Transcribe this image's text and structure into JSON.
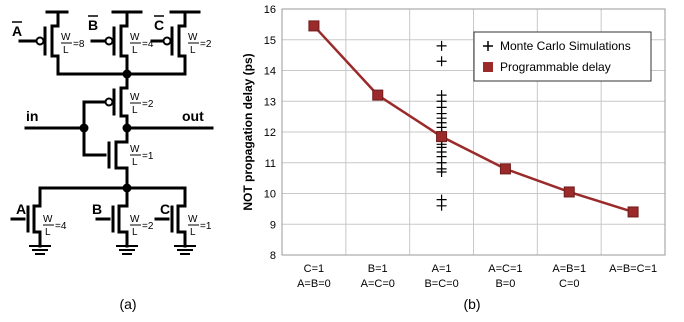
{
  "panel_a": {
    "caption": "(a)",
    "pmos": [
      {
        "label": "A",
        "w": "W",
        "l": "L",
        "ratio": "=8"
      },
      {
        "label": "B",
        "w": "W",
        "l": "L",
        "ratio": "=4"
      },
      {
        "label": "C",
        "w": "W",
        "l": "L",
        "ratio": "=2"
      },
      {
        "label": "",
        "w": "W",
        "l": "L",
        "ratio": "=2"
      }
    ],
    "nmos": [
      {
        "label": "",
        "w": "W",
        "l": "L",
        "ratio": "=1"
      },
      {
        "label": "A",
        "w": "W",
        "l": "L",
        "ratio": "=4"
      },
      {
        "label": "B",
        "w": "W",
        "l": "L",
        "ratio": "=2"
      },
      {
        "label": "C",
        "w": "W",
        "l": "L",
        "ratio": "=1"
      }
    ],
    "in_label": "in",
    "out_label": "out"
  },
  "panel_b": {
    "caption": "(b)"
  },
  "chart_data": {
    "type": "line",
    "ylabel": "NOT propagation delay (ps)",
    "xlabel": "",
    "ylim": [
      8,
      16
    ],
    "yticks": [
      "8",
      "9",
      "10",
      "11",
      "12",
      "13",
      "14",
      "15",
      "16"
    ],
    "grid": true,
    "legend_position": "top-right",
    "categories": [
      [
        "C=1",
        "A=B=0"
      ],
      [
        "B=1",
        "A=C=0"
      ],
      [
        "A=1",
        "B=C=0"
      ],
      [
        "A=C=1",
        "B=0"
      ],
      [
        "A=B=1",
        "C=0"
      ],
      [
        "A=B=C=1"
      ]
    ],
    "series": [
      {
        "name": "Programmable delay",
        "marker": "square",
        "color": "#9b2a2a",
        "x": [
          0,
          1,
          2,
          3,
          4,
          5
        ],
        "values": [
          15.45,
          13.2,
          11.85,
          10.8,
          10.05,
          9.4
        ]
      },
      {
        "name": "Monte Carlo Simulations",
        "marker": "plus",
        "color": "#000000",
        "x": [
          2,
          2,
          2,
          2,
          2,
          2,
          2,
          2,
          2,
          2,
          2,
          2,
          2,
          2,
          2,
          2,
          2,
          2,
          2,
          2,
          2,
          2
        ],
        "values": [
          14.8,
          14.3,
          13.2,
          13.0,
          12.8,
          12.6,
          12.45,
          12.3,
          12.15,
          12.0,
          11.9,
          11.8,
          11.7,
          11.6,
          11.5,
          11.35,
          11.2,
          11.0,
          10.8,
          10.7,
          9.8,
          9.6
        ]
      }
    ]
  }
}
